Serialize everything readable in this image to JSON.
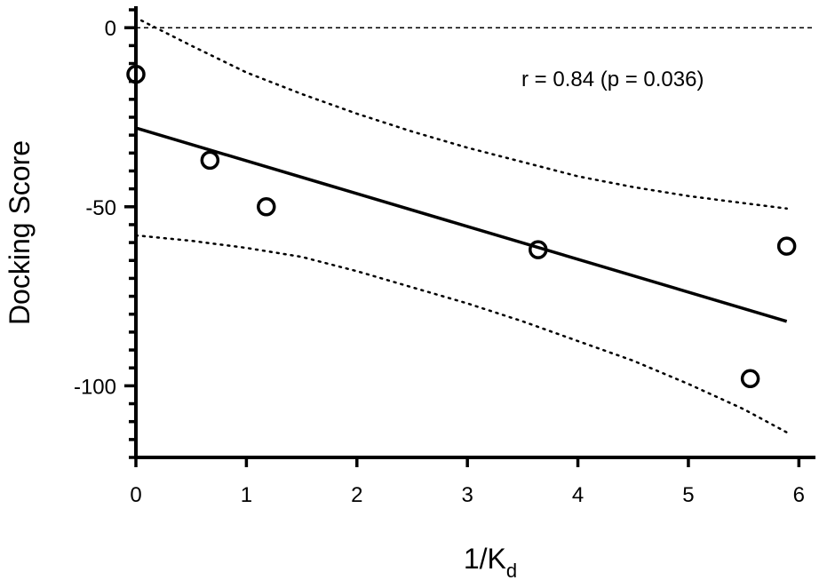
{
  "chart_data": {
    "type": "scatter",
    "title": "",
    "xlabel": "1/K",
    "xlabel_subscript": "d",
    "ylabel": "Docking Score",
    "xlim": [
      0,
      6.15
    ],
    "ylim": [
      -120,
      6
    ],
    "x_ticks": [
      0,
      1,
      2,
      3,
      4,
      5,
      6
    ],
    "y_ticks_labeled": [
      0,
      -50,
      -100
    ],
    "y_minor_step": 5,
    "grid": false,
    "points": [
      {
        "x": 0.0,
        "y": -13
      },
      {
        "x": 0.67,
        "y": -37
      },
      {
        "x": 1.18,
        "y": -50
      },
      {
        "x": 3.64,
        "y": -62
      },
      {
        "x": 5.56,
        "y": -98
      },
      {
        "x": 5.89,
        "y": -61
      }
    ],
    "fit_line": {
      "x": [
        0.0,
        5.89
      ],
      "y": [
        -28,
        -82
      ]
    },
    "confidence_upper": {
      "x": [
        0.05,
        0.5,
        1.0,
        1.5,
        2.0,
        2.5,
        3.0,
        3.5,
        4.0,
        4.5,
        5.0,
        5.5,
        5.89
      ],
      "y": [
        2,
        -5,
        -12.5,
        -18.5,
        -24,
        -29,
        -33.5,
        -37.5,
        -41.5,
        -44.5,
        -47,
        -49,
        -50.5
      ]
    },
    "confidence_lower": {
      "x": [
        0.0,
        0.5,
        1.0,
        1.5,
        2.0,
        2.5,
        3.0,
        3.5,
        4.0,
        4.5,
        5.0,
        5.5,
        5.89
      ],
      "y": [
        -58,
        -59.5,
        -61.5,
        -64,
        -68,
        -72.5,
        -77,
        -82,
        -87.5,
        -93,
        -99.5,
        -106.5,
        -113
      ]
    },
    "zero_reference_line": 0,
    "annotation": "r = 0.84 (p = 0.036)",
    "colors": {
      "axis": "#000000",
      "markers": "#000000",
      "fit": "#000000"
    }
  }
}
